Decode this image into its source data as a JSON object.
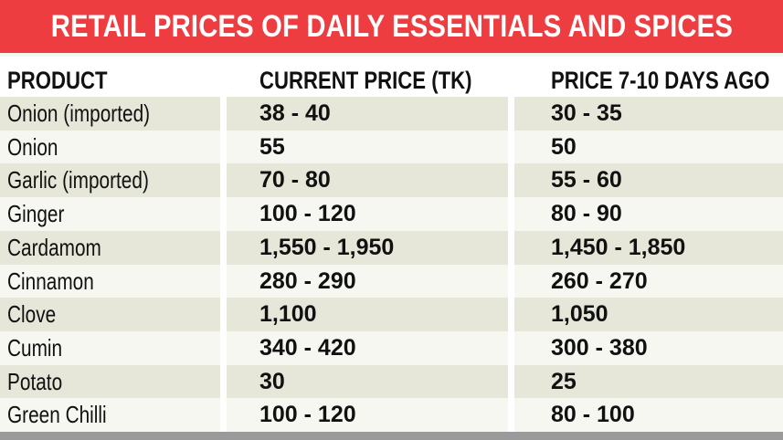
{
  "title": "RETAIL PRICES OF DAILY ESSENTIALS AND SPICES",
  "colors": {
    "title_background": "#ee3d40",
    "title_text": "#ffffff",
    "row_shaded": "#e6e6d9",
    "row_plain": "#f7f7f2",
    "bottom_rule": "#9a9a9a"
  },
  "chart_data": {
    "type": "table",
    "title": "RETAIL PRICES OF DAILY ESSENTIALS AND SPICES",
    "columns": [
      "PRODUCT",
      "CURRENT PRICE (TK)",
      "PRICE 7-10 DAYS AGO"
    ],
    "rows": [
      [
        "Onion (imported)",
        "38 - 40",
        "30 - 35"
      ],
      [
        "Onion",
        "55",
        "50"
      ],
      [
        "Garlic (imported)",
        "70 - 80",
        "55 - 60"
      ],
      [
        "Ginger",
        "100 - 120",
        "80 - 90"
      ],
      [
        "Cardamom",
        "1,550 - 1,950",
        "1,450 - 1,850"
      ],
      [
        "Cinnamon",
        "280 - 290",
        "260 - 270"
      ],
      [
        "Clove",
        "1,100",
        "1,050"
      ],
      [
        "Cumin",
        "340 - 420",
        "300 - 380"
      ],
      [
        "Potato",
        "30",
        "25"
      ],
      [
        "Green Chilli",
        "100 - 120",
        "80 - 100"
      ]
    ]
  }
}
